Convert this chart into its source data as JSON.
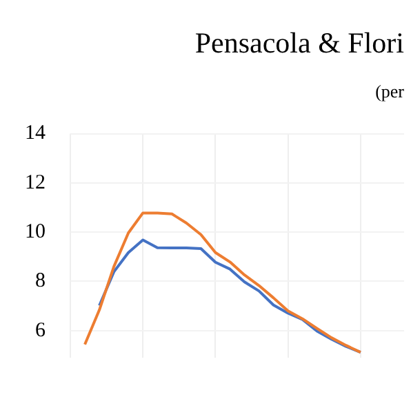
{
  "chart_data": {
    "type": "line",
    "title": "Pensacola & Flori",
    "subtitle": "(per",
    "categories": [
      null,
      null,
      null,
      null,
      null,
      null,
      null,
      null,
      null,
      null,
      null,
      null,
      null,
      null,
      null,
      null,
      null,
      null,
      null,
      null,
      null,
      null,
      null,
      null
    ],
    "series": [
      {
        "color": "#ed7d31",
        "values": [
          null,
          5.44,
          6.84,
          8.6,
          9.97,
          10.78,
          10.78,
          10.74,
          10.37,
          9.9,
          9.17,
          8.79,
          8.26,
          7.83,
          7.33,
          6.8,
          6.48,
          6.09,
          5.71,
          5.4,
          5.12,
          null,
          null,
          null
        ]
      },
      {
        "color": "#4472c4",
        "values": [
          null,
          null,
          7.02,
          8.39,
          9.17,
          9.68,
          9.37,
          9.36,
          9.36,
          9.33,
          8.78,
          8.5,
          7.98,
          7.61,
          7.04,
          6.71,
          6.45,
          5.98,
          5.65,
          5.36,
          5.12,
          null,
          null,
          null
        ]
      }
    ],
    "ylim": [
      4.9,
      14
    ],
    "yticks": [
      6,
      8,
      10,
      12,
      14
    ],
    "grid": true,
    "legend": false,
    "tick_labels": "y",
    "marker": "none",
    "line_style": "solid"
  }
}
